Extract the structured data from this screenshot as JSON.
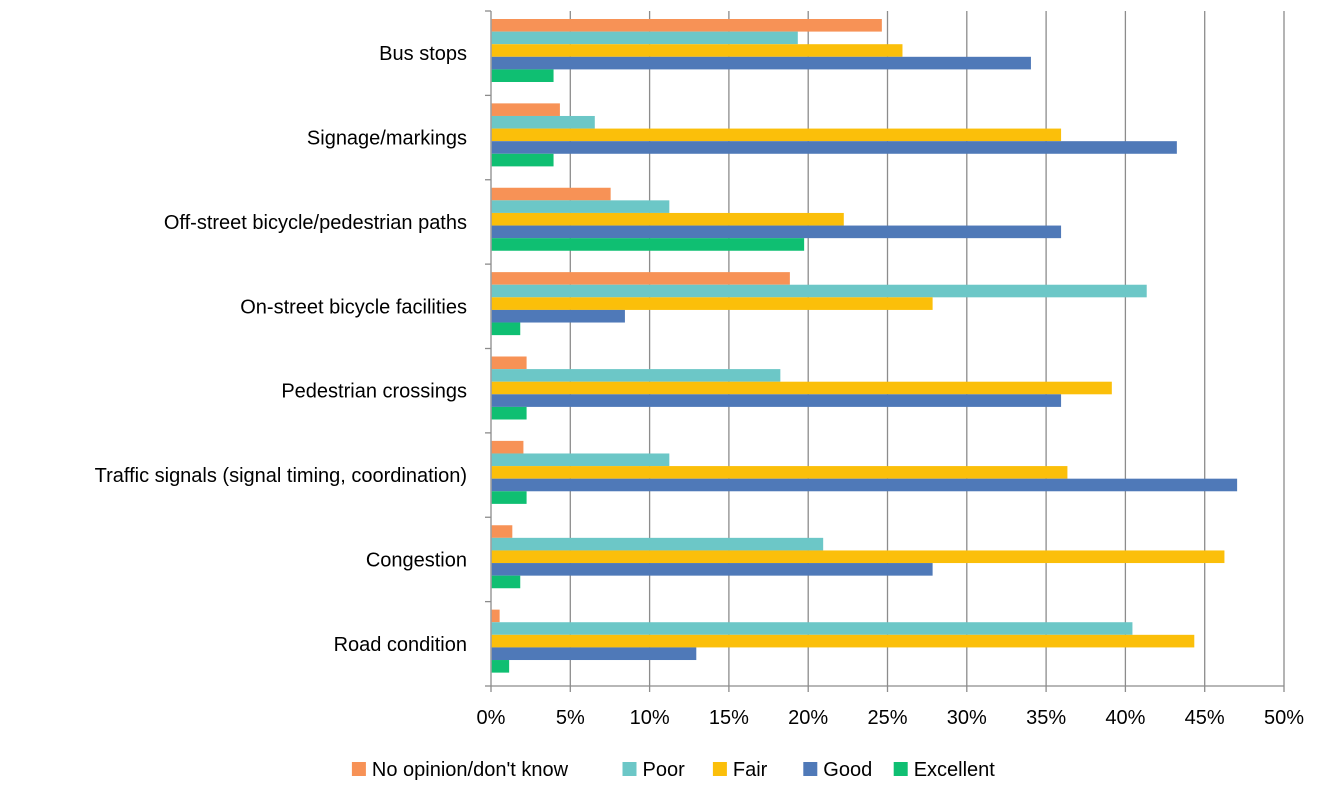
{
  "chart_data": {
    "type": "bar",
    "orientation": "horizontal",
    "categories": [
      "Bus stops",
      "Signage/markings",
      "Off-street bicycle/pedestrian paths",
      "On-street bicycle facilities",
      "Pedestrian crossings",
      "Traffic signals (signal timing, coordination)",
      "Congestion",
      "Road condition"
    ],
    "series": [
      {
        "name": "No opinion/don't know",
        "color": "#F79256",
        "values": [
          24.6,
          4.3,
          7.5,
          18.8,
          2.2,
          2.0,
          1.3,
          0.5
        ]
      },
      {
        "name": "Poor",
        "color": "#6CC7C7",
        "values": [
          19.3,
          6.5,
          11.2,
          41.3,
          18.2,
          11.2,
          20.9,
          40.4
        ]
      },
      {
        "name": "Fair",
        "color": "#FBBF0A",
        "values": [
          25.9,
          35.9,
          22.2,
          27.8,
          39.1,
          36.3,
          46.2,
          44.3
        ]
      },
      {
        "name": "Good",
        "color": "#4F79B8",
        "values": [
          34.0,
          43.2,
          35.9,
          8.4,
          35.9,
          47.0,
          27.8,
          12.9
        ]
      },
      {
        "name": "Excellent",
        "color": "#0FBF72",
        "values": [
          3.9,
          3.9,
          19.7,
          1.8,
          2.2,
          2.2,
          1.8,
          1.1
        ]
      }
    ],
    "x_ticks": [
      "0%",
      "5%",
      "10%",
      "15%",
      "20%",
      "25%",
      "30%",
      "35%",
      "40%",
      "45%",
      "50%"
    ],
    "xlim": [
      0,
      50
    ],
    "xlabel": "",
    "ylabel": "",
    "title": "",
    "grid": "vertical",
    "legend_position": "bottom"
  }
}
